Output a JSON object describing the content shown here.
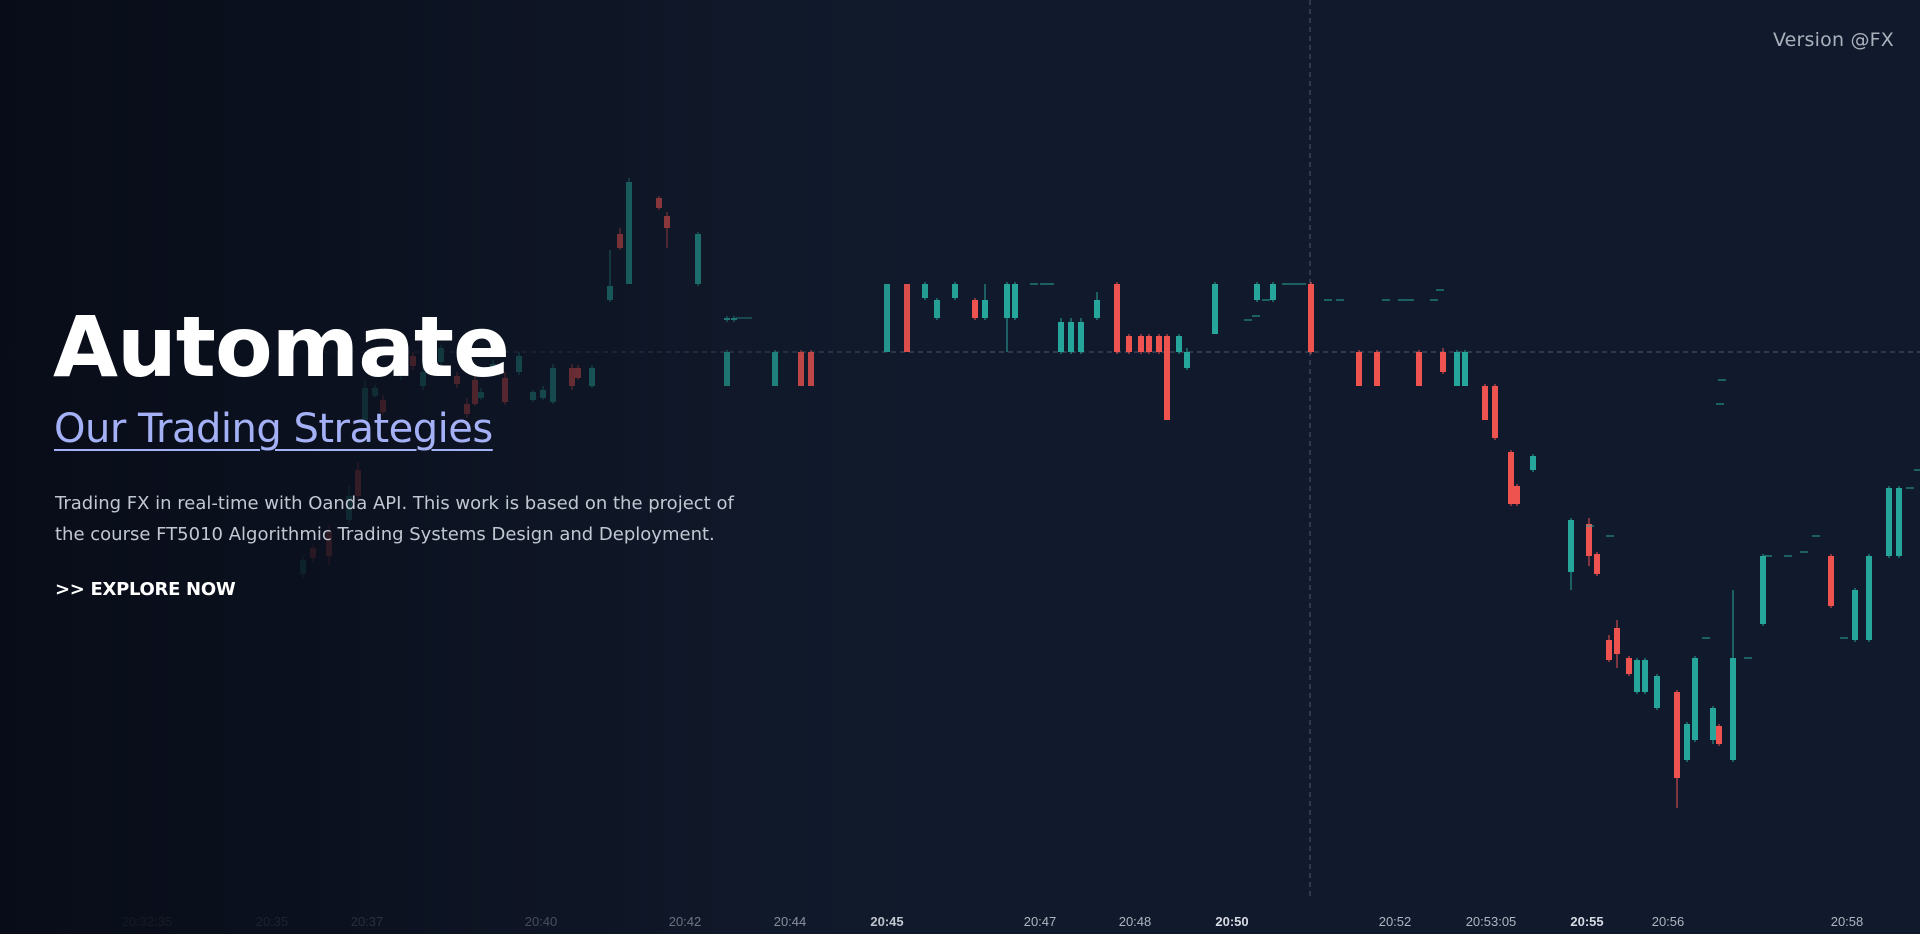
{
  "header": {
    "version_label": "Version @FX"
  },
  "hero": {
    "title": "Automate",
    "subtitle": "Our Trading Strategies",
    "description_line1": "Trading FX in real-time with Oanda API. This work is based on the project of",
    "description_line2": "the course FT5010 Algorithmic Trading Systems Design and Deployment.",
    "cta_label": ">> EXPLORE NOW"
  },
  "colors": {
    "background": "#111a2c",
    "up_candle": "#26a69a",
    "down_candle": "#ef5350",
    "accent_link": "#a5b1f6",
    "crosshair": "#6b7280"
  },
  "chart_data": {
    "type": "candlestick",
    "time_ticks": [
      {
        "label": "20:32:35",
        "emphasis": false
      },
      {
        "label": "20:35",
        "emphasis": false
      },
      {
        "label": "20:37",
        "emphasis": false
      },
      {
        "label": "20:40",
        "emphasis": false
      },
      {
        "label": "20:42",
        "emphasis": false
      },
      {
        "label": "20:44",
        "emphasis": false
      },
      {
        "label": "20:45",
        "emphasis": true
      },
      {
        "label": "20:47",
        "emphasis": false
      },
      {
        "label": "20:48",
        "emphasis": false
      },
      {
        "label": "20:50",
        "emphasis": true
      },
      {
        "label": "20:52",
        "emphasis": false
      },
      {
        "label": "20:53:05",
        "emphasis": false
      },
      {
        "label": "20:55",
        "emphasis": true
      },
      {
        "label": "20:56",
        "emphasis": false
      },
      {
        "label": "20:58",
        "emphasis": false
      }
    ],
    "crosshair": {
      "time": "20:50",
      "price": 0
    }
  }
}
